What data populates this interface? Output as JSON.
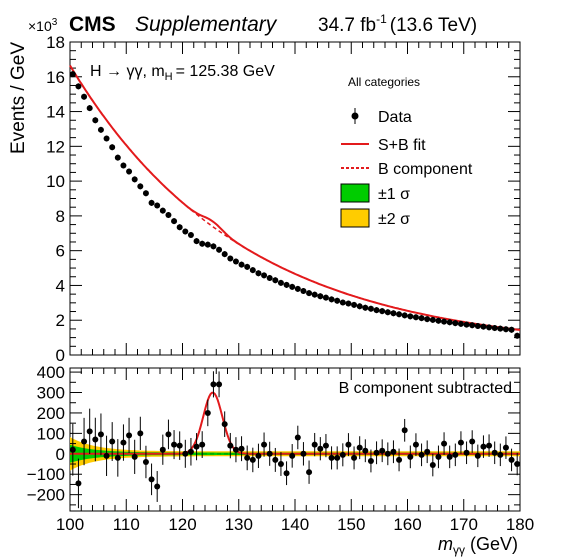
{
  "header": {
    "experiment": "CMS",
    "qualifier": "Supplementary",
    "lumi_value": "34.7 fb",
    "lumi_exp": "-1",
    "energy": "(13.6 TeV)",
    "exponent_prefix": "×10",
    "exponent_power": "3"
  },
  "chart_data": [
    {
      "type": "scatter",
      "title": "",
      "process_label": "H → γγ, m",
      "process_sub": "H",
      "process_value": "= 125.38 GeV",
      "category": "All categories",
      "ylabel": "Events / GeV",
      "ylim": [
        0,
        18
      ],
      "y_multiplier": 1000,
      "yticks": [
        0,
        2,
        4,
        6,
        8,
        10,
        12,
        14,
        16,
        18
      ],
      "xlim": [
        100,
        180
      ],
      "legend": {
        "placement": "top-right",
        "entries": [
          {
            "label": "Data",
            "kind": "marker"
          },
          {
            "label": "S+B fit",
            "kind": "line",
            "color": "#e31a1c"
          },
          {
            "label": "B component",
            "kind": "dashed",
            "color": "#e31a1c"
          },
          {
            "label": "±1 σ",
            "kind": "box",
            "color": "#00cc00"
          },
          {
            "label": "±2 σ",
            "kind": "box",
            "color": "#ffcc00"
          }
        ]
      },
      "series": [
        {
          "name": "Data",
          "x": [
            100.5,
            101.5,
            102.5,
            103.5,
            104.5,
            105.5,
            106.5,
            107.5,
            108.5,
            109.5,
            110.5,
            111.5,
            112.5,
            113.5,
            114.5,
            115.5,
            116.5,
            117.5,
            118.5,
            119.5,
            120.5,
            121.5,
            122.5,
            123.5,
            124.5,
            125.5,
            126.5,
            127.5,
            128.5,
            129.5,
            130.5,
            131.5,
            132.5,
            133.5,
            134.5,
            135.5,
            136.5,
            137.5,
            138.5,
            139.5,
            140.5,
            141.5,
            142.5,
            143.5,
            144.5,
            145.5,
            146.5,
            147.5,
            148.5,
            149.5,
            150.5,
            151.5,
            152.5,
            153.5,
            154.5,
            155.5,
            156.5,
            157.5,
            158.5,
            159.5,
            160.5,
            161.5,
            162.5,
            163.5,
            164.5,
            165.5,
            166.5,
            167.5,
            168.5,
            169.5,
            170.5,
            171.5,
            172.5,
            173.5,
            174.5,
            175.5,
            176.5,
            177.5,
            178.5,
            179.5
          ],
          "y": [
            16.15,
            15.45,
            14.85,
            14.2,
            13.5,
            12.95,
            12.45,
            11.95,
            11.35,
            10.9,
            10.55,
            10.1,
            9.7,
            9.3,
            8.75,
            8.6,
            8.3,
            8.05,
            7.7,
            7.35,
            7.1,
            6.9,
            6.55,
            6.4,
            6.35,
            6.25,
            6.05,
            5.8,
            5.55,
            5.38,
            5.2,
            5.07,
            4.88,
            4.7,
            4.58,
            4.43,
            4.3,
            4.15,
            4.03,
            3.92,
            3.8,
            3.68,
            3.56,
            3.47,
            3.38,
            3.3,
            3.2,
            3.12,
            3.02,
            2.96,
            2.88,
            2.8,
            2.72,
            2.66,
            2.58,
            2.52,
            2.46,
            2.4,
            2.34,
            2.28,
            2.22,
            2.17,
            2.12,
            2.06,
            2.02,
            1.97,
            1.92,
            1.88,
            1.83,
            1.79,
            1.75,
            1.71,
            1.67,
            1.63,
            1.59,
            1.55,
            1.52,
            1.48,
            1.45,
            1.11
          ]
        },
        {
          "name": "S+B fit",
          "color": "#e31a1c"
        },
        {
          "name": "B component",
          "color": "#e31a1c"
        }
      ]
    },
    {
      "type": "scatter",
      "title": "",
      "annotation": "B component subtracted",
      "xlabel_main": "m",
      "xlabel_sub": "γγ",
      "xlabel_unit": "(GeV)",
      "xlim": [
        100,
        180
      ],
      "xticks": [
        100,
        110,
        120,
        130,
        140,
        150,
        160,
        170,
        180
      ],
      "ylim": [
        -280,
        420
      ],
      "yticks": [
        -200,
        -100,
        0,
        100,
        200,
        300,
        400
      ],
      "series": [
        {
          "name": "Data",
          "x": [
            100.5,
            101.5,
            102.5,
            103.5,
            104.5,
            105.5,
            106.5,
            107.5,
            108.5,
            109.5,
            110.5,
            111.5,
            112.5,
            113.5,
            114.5,
            115.5,
            116.5,
            117.5,
            118.5,
            119.5,
            120.5,
            121.5,
            122.5,
            123.5,
            124.5,
            125.5,
            126.5,
            127.5,
            128.5,
            129.5,
            130.5,
            131.5,
            132.5,
            133.5,
            134.5,
            135.5,
            136.5,
            137.5,
            138.5,
            139.5,
            140.5,
            141.5,
            142.5,
            143.5,
            144.5,
            145.5,
            146.5,
            147.5,
            148.5,
            149.5,
            150.5,
            151.5,
            152.5,
            153.5,
            154.5,
            155.5,
            156.5,
            157.5,
            158.5,
            159.5,
            160.5,
            161.5,
            162.5,
            163.5,
            164.5,
            165.5,
            166.5,
            167.5,
            168.5,
            169.5,
            170.5,
            171.5,
            172.5,
            173.5,
            174.5,
            175.5,
            176.5,
            177.5,
            178.5,
            179.5
          ],
          "y": [
            20,
            -145,
            60,
            110,
            70,
            95,
            -10,
            60,
            -20,
            55,
            90,
            -15,
            100,
            -40,
            -125,
            -160,
            20,
            95,
            45,
            40,
            0,
            10,
            35,
            45,
            200,
            340,
            340,
            145,
            40,
            20,
            25,
            -20,
            -30,
            -10,
            45,
            0,
            -30,
            -50,
            -95,
            -10,
            80,
            0,
            -90,
            45,
            25,
            40,
            -20,
            -20,
            -5,
            45,
            -20,
            30,
            15,
            -35,
            5,
            15,
            0,
            10,
            -30,
            115,
            -15,
            45,
            -5,
            10,
            -55,
            -15,
            50,
            -15,
            -5,
            55,
            5,
            60,
            -10,
            35,
            40,
            5,
            -5,
            30,
            -30,
            -50
          ]
        },
        {
          "name": "S+B fit",
          "color": "#e31a1c"
        },
        {
          "name": "B component",
          "color": "#00aa00"
        }
      ]
    }
  ]
}
